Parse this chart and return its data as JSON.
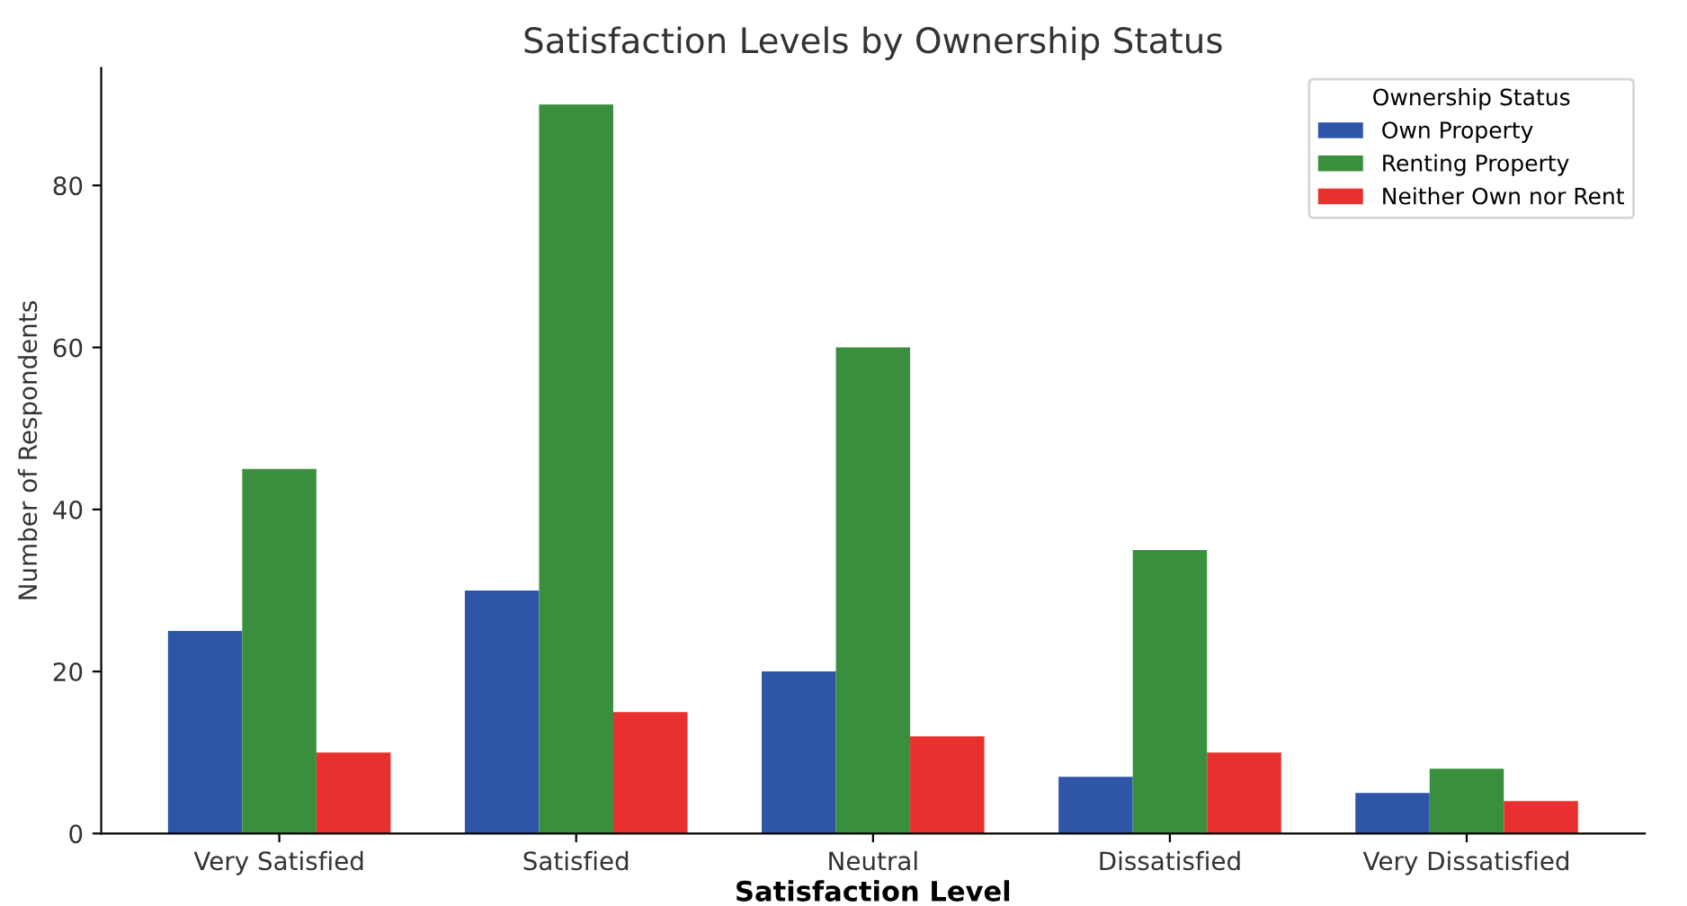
{
  "chart_data": {
    "type": "bar",
    "title": "Satisfaction Levels by Ownership Status",
    "xlabel": "Satisfaction Level",
    "ylabel": "Number of Respondents",
    "legend_title": "Ownership Status",
    "categories": [
      "Very Satisfied",
      "Satisfied",
      "Neutral",
      "Dissatisfied",
      "Very Dissatisfied"
    ],
    "series": [
      {
        "name": "Own Property",
        "color": "#2f55a8",
        "values": [
          25,
          30,
          20,
          7,
          5
        ]
      },
      {
        "name": "Renting Property",
        "color": "#3a8f3e",
        "values": [
          45,
          90,
          60,
          35,
          8
        ]
      },
      {
        "name": "Neither Own nor Rent",
        "color": "#e8312e",
        "values": [
          10,
          15,
          12,
          10,
          4
        ]
      }
    ],
    "ylim": [
      0,
      94.5
    ],
    "yticks": [
      0,
      20,
      40,
      60,
      80
    ],
    "grid": false,
    "legend": "top right"
  }
}
